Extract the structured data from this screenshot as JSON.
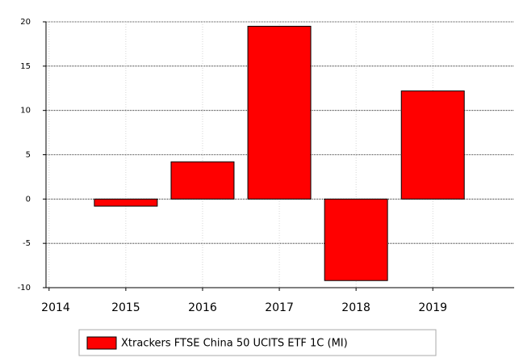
{
  "chart_data": {
    "type": "bar",
    "x": [
      2015,
      2016,
      2017,
      2018,
      2019
    ],
    "series": [
      {
        "name": "Xtrackers FTSE China 50 UCITS ETF 1C (MI)",
        "color": "#ff0000",
        "values": [
          -0.8,
          4.2,
          19.5,
          -9.2,
          12.2
        ]
      }
    ],
    "xlim": [
      2013.96,
      2020.06
    ],
    "xticks": [
      2014,
      2015,
      2016,
      2017,
      2018,
      2019
    ],
    "ylim": [
      -10,
      20
    ],
    "yticks": [
      -10,
      -5,
      0,
      5,
      10,
      15,
      20
    ],
    "grid": true,
    "legend": "bottom"
  }
}
